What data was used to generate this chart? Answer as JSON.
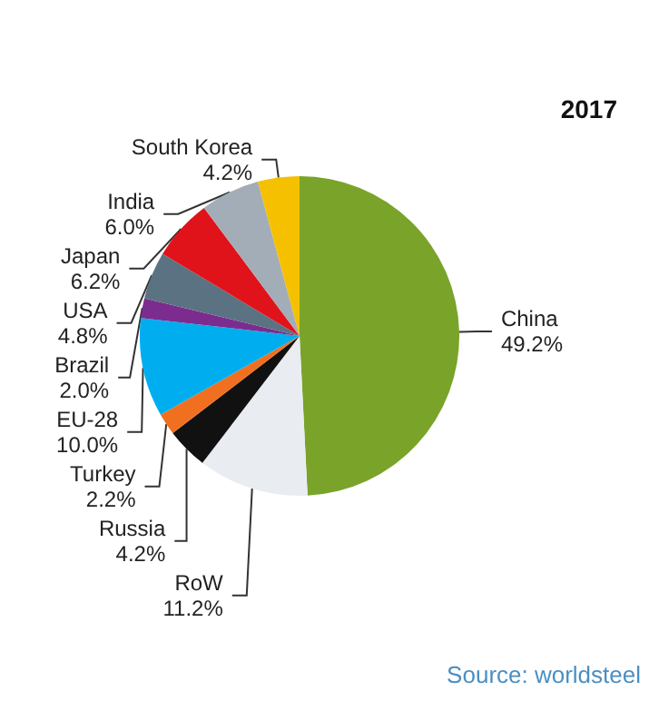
{
  "chart_data": {
    "type": "pie",
    "title": "2017",
    "categories": [
      "China",
      "RoW",
      "Russia",
      "Turkey",
      "EU-28",
      "Brazil",
      "USA",
      "Japan",
      "India",
      "South Korea"
    ],
    "values": [
      49.2,
      11.2,
      4.2,
      2.2,
      10.0,
      2.0,
      4.8,
      6.2,
      6.0,
      4.2
    ],
    "value_labels": [
      "49.2%",
      "11.2%",
      "4.2%",
      "2.2%",
      "10.0%",
      "2.0%",
      "4.8%",
      "6.2%",
      "6.0%",
      "4.2%"
    ],
    "colors": [
      "#7aa32a",
      "#e9edf1",
      "#111111",
      "#f07020",
      "#00aeef",
      "#7b2c8e",
      "#5b7282",
      "#e0131b",
      "#a3adb7",
      "#f5c000"
    ],
    "annotations": [
      "Source: worldsteel"
    ]
  }
}
